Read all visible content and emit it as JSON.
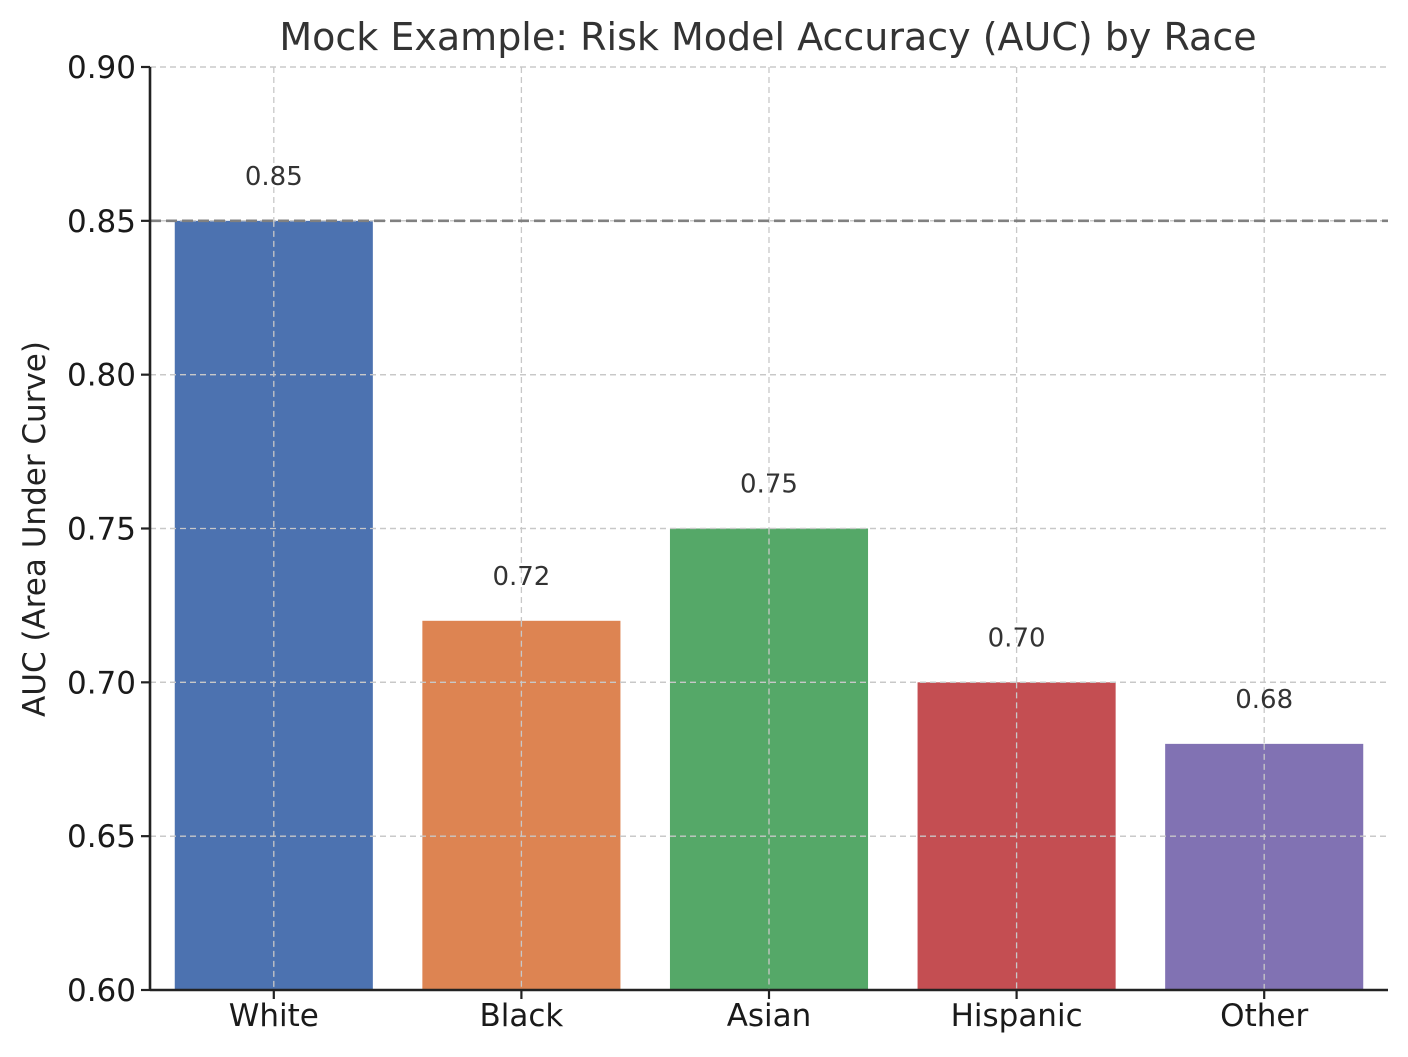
{
  "chart_data": {
    "type": "bar",
    "title": "Mock Example: Risk Model Accuracy (AUC) by Race",
    "xlabel": "",
    "ylabel": "AUC (Area Under Curve)",
    "categories": [
      "White",
      "Black",
      "Asian",
      "Hispanic",
      "Other"
    ],
    "values": [
      0.85,
      0.72,
      0.75,
      0.7,
      0.68
    ],
    "data_labels": [
      "0.85",
      "0.72",
      "0.75",
      "0.70",
      "0.68"
    ],
    "colors": [
      "#4c72b0",
      "#dd8452",
      "#55a868",
      "#c44e52",
      "#8172b3"
    ],
    "ylim": [
      0.6,
      0.9
    ],
    "yticks": [
      0.6,
      0.65,
      0.7,
      0.75,
      0.8,
      0.85,
      0.9
    ],
    "ytick_labels": [
      "0.60",
      "0.65",
      "0.70",
      "0.75",
      "0.80",
      "0.85",
      "0.90"
    ],
    "grid": true,
    "reference_line": {
      "y": 0.85,
      "style": "dashed",
      "color": "#808080"
    }
  }
}
